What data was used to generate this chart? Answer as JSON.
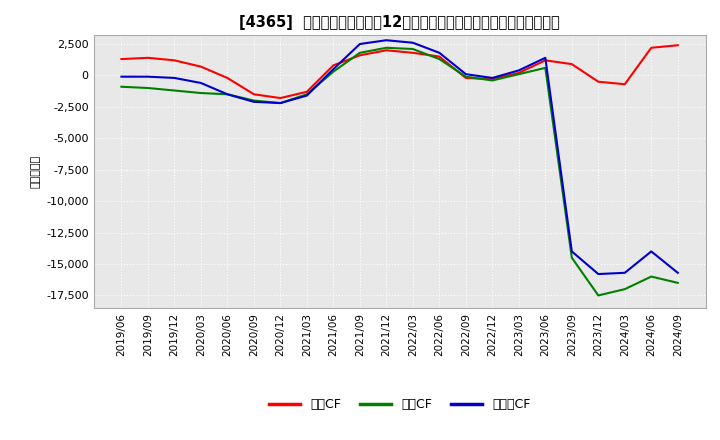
{
  "title": "[4365]  キャッシュフローの12か月移動合計の対前年同期増減額の推移",
  "ylabel": "（百万円）",
  "ylim": [
    -18500,
    3200
  ],
  "yticks": [
    2500,
    0,
    -2500,
    -5000,
    -7500,
    -10000,
    -12500,
    -15000,
    -17500
  ],
  "plot_bg_color": "#e8e8e8",
  "fig_bg_color": "#ffffff",
  "grid_color": "#ffffff",
  "legend_labels": [
    "営業CF",
    "投資CF",
    "フリーCF"
  ],
  "legend_colors": [
    "#ff0000",
    "#008000",
    "#0000cc"
  ],
  "dates": [
    "2019/06",
    "2019/09",
    "2019/12",
    "2020/03",
    "2020/06",
    "2020/09",
    "2020/12",
    "2021/03",
    "2021/06",
    "2021/09",
    "2021/12",
    "2022/03",
    "2022/06",
    "2022/09",
    "2022/12",
    "2023/03",
    "2023/06",
    "2023/09",
    "2023/12",
    "2024/03",
    "2024/06",
    "2024/09"
  ],
  "operating_cf": [
    1300,
    1400,
    1200,
    700,
    -200,
    -1500,
    -1800,
    -1300,
    800,
    1600,
    2000,
    1800,
    1500,
    -200,
    -300,
    200,
    1200,
    900,
    -500,
    -700,
    2200,
    2400
  ],
  "investing_cf": [
    -900,
    -1000,
    -1200,
    -1400,
    -1500,
    -2000,
    -2200,
    -1500,
    300,
    1800,
    2200,
    2100,
    1300,
    -100,
    -400,
    100,
    600,
    -14500,
    -17500,
    -17000,
    -16000,
    -16500
  ],
  "free_cf": [
    -100,
    -100,
    -200,
    -600,
    -1500,
    -2100,
    -2200,
    -1600,
    500,
    2500,
    2800,
    2600,
    1800,
    100,
    -200,
    400,
    1400,
    -14000,
    -15800,
    -15700,
    -14000,
    -15700
  ]
}
